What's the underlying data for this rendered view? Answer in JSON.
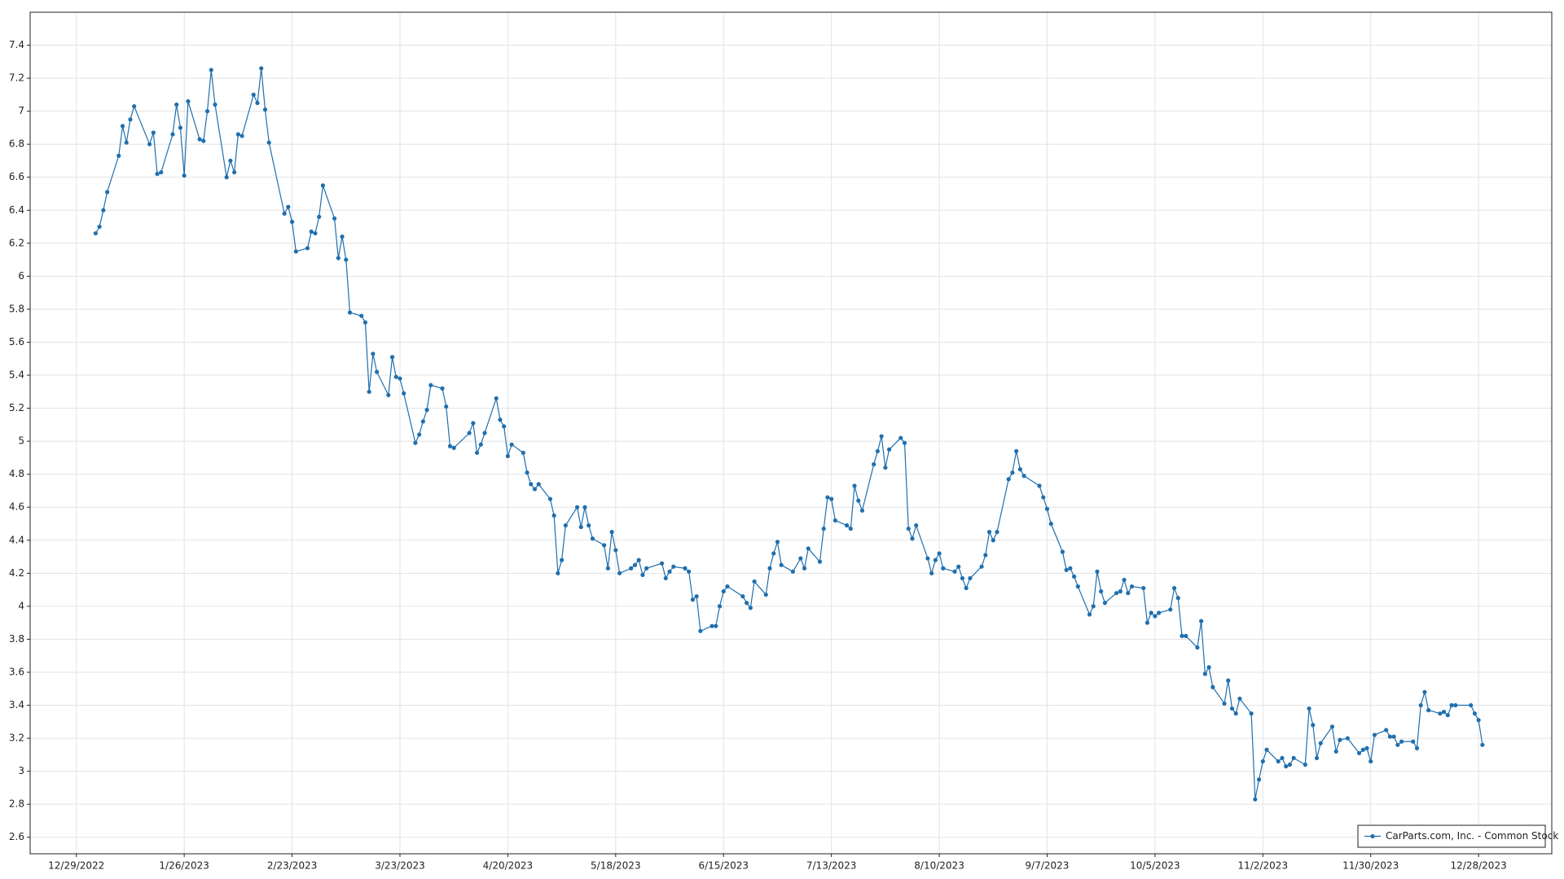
{
  "chart_data": {
    "type": "line",
    "x": [
      "2023-01-03",
      "2023-01-04",
      "2023-01-05",
      "2023-01-06",
      "2023-01-09",
      "2023-01-10",
      "2023-01-11",
      "2023-01-12",
      "2023-01-13",
      "2023-01-17",
      "2023-01-18",
      "2023-01-19",
      "2023-01-20",
      "2023-01-23",
      "2023-01-24",
      "2023-01-25",
      "2023-01-26",
      "2023-01-27",
      "2023-01-30",
      "2023-01-31",
      "2023-02-01",
      "2023-02-02",
      "2023-02-03",
      "2023-02-06",
      "2023-02-07",
      "2023-02-08",
      "2023-02-09",
      "2023-02-10",
      "2023-02-13",
      "2023-02-14",
      "2023-02-15",
      "2023-02-16",
      "2023-02-17",
      "2023-02-21",
      "2023-02-22",
      "2023-02-23",
      "2023-02-24",
      "2023-02-27",
      "2023-02-28",
      "2023-03-01",
      "2023-03-02",
      "2023-03-03",
      "2023-03-06",
      "2023-03-07",
      "2023-03-08",
      "2023-03-09",
      "2023-03-10",
      "2023-03-13",
      "2023-03-14",
      "2023-03-15",
      "2023-03-16",
      "2023-03-17",
      "2023-03-20",
      "2023-03-21",
      "2023-03-22",
      "2023-03-23",
      "2023-03-24",
      "2023-03-27",
      "2023-03-28",
      "2023-03-29",
      "2023-03-30",
      "2023-03-31",
      "2023-04-03",
      "2023-04-04",
      "2023-04-05",
      "2023-04-06",
      "2023-04-10",
      "2023-04-11",
      "2023-04-12",
      "2023-04-13",
      "2023-04-14",
      "2023-04-17",
      "2023-04-18",
      "2023-04-19",
      "2023-04-20",
      "2023-04-21",
      "2023-04-24",
      "2023-04-25",
      "2023-04-26",
      "2023-04-27",
      "2023-04-28",
      "2023-05-01",
      "2023-05-02",
      "2023-05-03",
      "2023-05-04",
      "2023-05-05",
      "2023-05-08",
      "2023-05-09",
      "2023-05-10",
      "2023-05-11",
      "2023-05-12",
      "2023-05-15",
      "2023-05-16",
      "2023-05-17",
      "2023-05-18",
      "2023-05-19",
      "2023-05-22",
      "2023-05-23",
      "2023-05-24",
      "2023-05-25",
      "2023-05-26",
      "2023-05-30",
      "2023-05-31",
      "2023-06-01",
      "2023-06-02",
      "2023-06-05",
      "2023-06-06",
      "2023-06-07",
      "2023-06-08",
      "2023-06-09",
      "2023-06-12",
      "2023-06-13",
      "2023-06-14",
      "2023-06-15",
      "2023-06-16",
      "2023-06-20",
      "2023-06-21",
      "2023-06-22",
      "2023-06-23",
      "2023-06-26",
      "2023-06-27",
      "2023-06-28",
      "2023-06-29",
      "2023-06-30",
      "2023-07-03",
      "2023-07-05",
      "2023-07-06",
      "2023-07-07",
      "2023-07-10",
      "2023-07-11",
      "2023-07-12",
      "2023-07-13",
      "2023-07-14",
      "2023-07-17",
      "2023-07-18",
      "2023-07-19",
      "2023-07-20",
      "2023-07-21",
      "2023-07-24",
      "2023-07-25",
      "2023-07-26",
      "2023-07-27",
      "2023-07-28",
      "2023-07-31",
      "2023-08-01",
      "2023-08-02",
      "2023-08-03",
      "2023-08-04",
      "2023-08-07",
      "2023-08-08",
      "2023-08-09",
      "2023-08-10",
      "2023-08-11",
      "2023-08-14",
      "2023-08-15",
      "2023-08-16",
      "2023-08-17",
      "2023-08-18",
      "2023-08-21",
      "2023-08-22",
      "2023-08-23",
      "2023-08-24",
      "2023-08-25",
      "2023-08-28",
      "2023-08-29",
      "2023-08-30",
      "2023-08-31",
      "2023-09-01",
      "2023-09-05",
      "2023-09-06",
      "2023-09-07",
      "2023-09-08",
      "2023-09-11",
      "2023-09-12",
      "2023-09-13",
      "2023-09-14",
      "2023-09-15",
      "2023-09-18",
      "2023-09-19",
      "2023-09-20",
      "2023-09-21",
      "2023-09-22",
      "2023-09-25",
      "2023-09-26",
      "2023-09-27",
      "2023-09-28",
      "2023-09-29",
      "2023-10-02",
      "2023-10-03",
      "2023-10-04",
      "2023-10-05",
      "2023-10-06",
      "2023-10-09",
      "2023-10-10",
      "2023-10-11",
      "2023-10-12",
      "2023-10-13",
      "2023-10-16",
      "2023-10-17",
      "2023-10-18",
      "2023-10-19",
      "2023-10-20",
      "2023-10-23",
      "2023-10-24",
      "2023-10-25",
      "2023-10-26",
      "2023-10-27",
      "2023-10-30",
      "2023-10-31",
      "2023-11-01",
      "2023-11-02",
      "2023-11-03",
      "2023-11-06",
      "2023-11-07",
      "2023-11-08",
      "2023-11-09",
      "2023-11-10",
      "2023-11-13",
      "2023-11-14",
      "2023-11-15",
      "2023-11-16",
      "2023-11-17",
      "2023-11-20",
      "2023-11-21",
      "2023-11-22",
      "2023-11-24",
      "2023-11-27",
      "2023-11-28",
      "2023-11-29",
      "2023-11-30",
      "2023-12-01",
      "2023-12-04",
      "2023-12-05",
      "2023-12-06",
      "2023-12-07",
      "2023-12-08",
      "2023-12-11",
      "2023-12-12",
      "2023-12-13",
      "2023-12-14",
      "2023-12-15",
      "2023-12-18",
      "2023-12-19",
      "2023-12-20",
      "2023-12-21",
      "2023-12-22",
      "2023-12-26",
      "2023-12-27",
      "2023-12-28",
      "2023-12-29"
    ],
    "series": [
      {
        "name": "CarParts.com, Inc. - Common Stock",
        "color": "#1f6fae",
        "values": [
          6.26,
          6.3,
          6.4,
          6.51,
          6.73,
          6.91,
          6.81,
          6.95,
          7.03,
          6.8,
          6.87,
          6.62,
          6.63,
          6.86,
          7.04,
          6.9,
          6.61,
          7.06,
          6.83,
          6.82,
          7.0,
          7.25,
          7.04,
          6.6,
          6.7,
          6.63,
          6.86,
          6.85,
          7.1,
          7.05,
          7.26,
          7.01,
          6.81,
          6.38,
          6.42,
          6.33,
          6.15,
          6.17,
          6.27,
          6.26,
          6.36,
          6.55,
          6.35,
          6.11,
          6.24,
          6.1,
          5.78,
          5.76,
          5.72,
          5.3,
          5.53,
          5.42,
          5.28,
          5.51,
          5.39,
          5.38,
          5.29,
          4.99,
          5.04,
          5.12,
          5.19,
          5.34,
          5.32,
          5.21,
          4.97,
          4.96,
          5.05,
          5.11,
          4.93,
          4.98,
          5.05,
          5.26,
          5.13,
          5.09,
          4.91,
          4.98,
          4.93,
          4.81,
          4.74,
          4.71,
          4.74,
          4.65,
          4.55,
          4.2,
          4.28,
          4.49,
          4.6,
          4.48,
          4.6,
          4.49,
          4.41,
          4.37,
          4.23,
          4.45,
          4.34,
          4.2,
          4.23,
          4.25,
          4.28,
          4.19,
          4.23,
          4.26,
          4.17,
          4.21,
          4.24,
          4.23,
          4.21,
          4.04,
          4.06,
          3.85,
          3.88,
          3.88,
          4.0,
          4.09,
          4.12,
          4.06,
          4.02,
          3.99,
          4.15,
          4.07,
          4.23,
          4.32,
          4.39,
          4.25,
          4.21,
          4.29,
          4.23,
          4.35,
          4.27,
          4.47,
          4.66,
          4.65,
          4.52,
          4.49,
          4.47,
          4.73,
          4.64,
          4.58,
          4.86,
          4.94,
          5.03,
          4.84,
          4.95,
          5.02,
          4.99,
          4.47,
          4.41,
          4.49,
          4.29,
          4.2,
          4.28,
          4.32,
          4.23,
          4.21,
          4.24,
          4.17,
          4.11,
          4.17,
          4.24,
          4.31,
          4.45,
          4.4,
          4.45,
          4.77,
          4.81,
          4.94,
          4.83,
          4.79,
          4.73,
          4.66,
          4.59,
          4.5,
          4.33,
          4.22,
          4.23,
          4.18,
          4.12,
          3.95,
          4.0,
          4.21,
          4.09,
          4.02,
          4.08,
          4.09,
          4.16,
          4.08,
          4.12,
          4.11,
          3.9,
          3.96,
          3.94,
          3.96,
          3.98,
          4.11,
          4.05,
          3.82,
          3.82,
          3.75,
          3.91,
          3.59,
          3.63,
          3.51,
          3.41,
          3.55,
          3.38,
          3.35,
          3.44,
          3.35,
          2.83,
          2.95,
          3.06,
          3.13,
          3.06,
          3.08,
          3.03,
          3.04,
          3.08,
          3.04,
          3.38,
          3.28,
          3.08,
          3.17,
          3.27,
          3.12,
          3.19,
          3.2,
          3.11,
          3.13,
          3.14,
          3.06,
          3.22,
          3.25,
          3.21,
          3.21,
          3.16,
          3.18,
          3.18,
          3.14,
          3.4,
          3.48,
          3.37,
          3.35,
          3.36,
          3.34,
          3.4,
          3.4,
          3.4,
          3.35,
          3.31,
          3.16
        ]
      }
    ],
    "xlim": [
      "2022-12-17",
      "2024-01-16"
    ],
    "xticks": [
      {
        "value": "2022-12-29",
        "label": "12/29/2022"
      },
      {
        "value": "2023-01-26",
        "label": "1/26/2023"
      },
      {
        "value": "2023-02-23",
        "label": "2/23/2023"
      },
      {
        "value": "2023-03-23",
        "label": "3/23/2023"
      },
      {
        "value": "2023-04-20",
        "label": "4/20/2023"
      },
      {
        "value": "2023-05-18",
        "label": "5/18/2023"
      },
      {
        "value": "2023-06-15",
        "label": "6/15/2023"
      },
      {
        "value": "2023-07-13",
        "label": "7/13/2023"
      },
      {
        "value": "2023-08-10",
        "label": "8/10/2023"
      },
      {
        "value": "2023-09-07",
        "label": "9/7/2023"
      },
      {
        "value": "2023-10-05",
        "label": "10/5/2023"
      },
      {
        "value": "2023-11-02",
        "label": "11/2/2023"
      },
      {
        "value": "2023-11-30",
        "label": "11/30/2023"
      },
      {
        "value": "2023-12-28",
        "label": "12/28/2023"
      }
    ],
    "ylim": [
      2.5,
      7.6
    ],
    "yticks": [
      2.6,
      2.8,
      3,
      3.2,
      3.4,
      3.6,
      3.8,
      4,
      4.2,
      4.4,
      4.6,
      4.8,
      5,
      5.2,
      5.4,
      5.6,
      5.8,
      6,
      6.2,
      6.4,
      6.6,
      6.8,
      7,
      7.2,
      7.4
    ],
    "grid": true,
    "legend": "lower right"
  }
}
